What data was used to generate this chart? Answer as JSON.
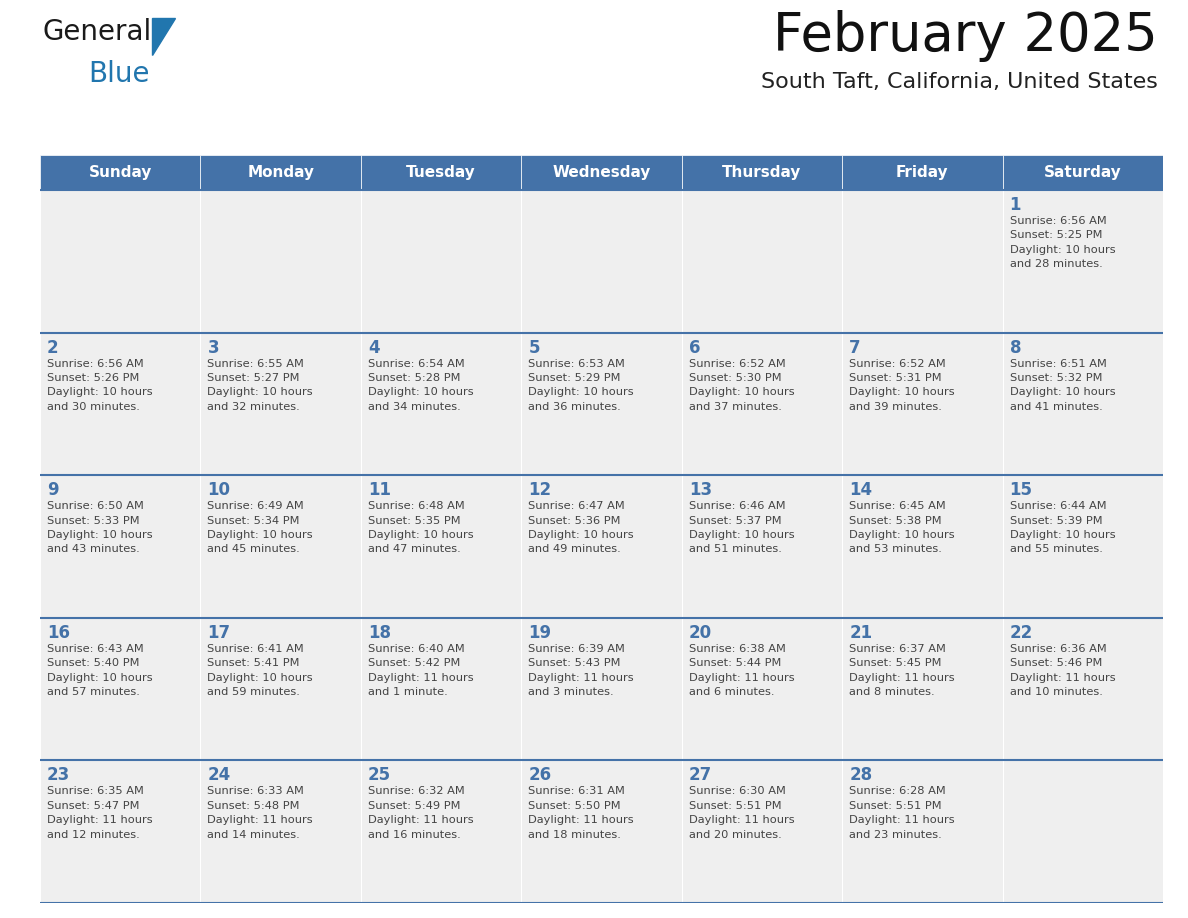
{
  "title": "February 2025",
  "subtitle": "South Taft, California, United States",
  "header_color": "#4472A8",
  "header_text_color": "#FFFFFF",
  "cell_bg_color": "#EFEFEF",
  "border_color": "#4472A8",
  "day_number_color": "#4472A8",
  "text_color": "#444444",
  "days_of_week": [
    "Sunday",
    "Monday",
    "Tuesday",
    "Wednesday",
    "Thursday",
    "Friday",
    "Saturday"
  ],
  "weeks": [
    [
      {
        "day": "",
        "info": ""
      },
      {
        "day": "",
        "info": ""
      },
      {
        "day": "",
        "info": ""
      },
      {
        "day": "",
        "info": ""
      },
      {
        "day": "",
        "info": ""
      },
      {
        "day": "",
        "info": ""
      },
      {
        "day": "1",
        "info": "Sunrise: 6:56 AM\nSunset: 5:25 PM\nDaylight: 10 hours\nand 28 minutes."
      }
    ],
    [
      {
        "day": "2",
        "info": "Sunrise: 6:56 AM\nSunset: 5:26 PM\nDaylight: 10 hours\nand 30 minutes."
      },
      {
        "day": "3",
        "info": "Sunrise: 6:55 AM\nSunset: 5:27 PM\nDaylight: 10 hours\nand 32 minutes."
      },
      {
        "day": "4",
        "info": "Sunrise: 6:54 AM\nSunset: 5:28 PM\nDaylight: 10 hours\nand 34 minutes."
      },
      {
        "day": "5",
        "info": "Sunrise: 6:53 AM\nSunset: 5:29 PM\nDaylight: 10 hours\nand 36 minutes."
      },
      {
        "day": "6",
        "info": "Sunrise: 6:52 AM\nSunset: 5:30 PM\nDaylight: 10 hours\nand 37 minutes."
      },
      {
        "day": "7",
        "info": "Sunrise: 6:52 AM\nSunset: 5:31 PM\nDaylight: 10 hours\nand 39 minutes."
      },
      {
        "day": "8",
        "info": "Sunrise: 6:51 AM\nSunset: 5:32 PM\nDaylight: 10 hours\nand 41 minutes."
      }
    ],
    [
      {
        "day": "9",
        "info": "Sunrise: 6:50 AM\nSunset: 5:33 PM\nDaylight: 10 hours\nand 43 minutes."
      },
      {
        "day": "10",
        "info": "Sunrise: 6:49 AM\nSunset: 5:34 PM\nDaylight: 10 hours\nand 45 minutes."
      },
      {
        "day": "11",
        "info": "Sunrise: 6:48 AM\nSunset: 5:35 PM\nDaylight: 10 hours\nand 47 minutes."
      },
      {
        "day": "12",
        "info": "Sunrise: 6:47 AM\nSunset: 5:36 PM\nDaylight: 10 hours\nand 49 minutes."
      },
      {
        "day": "13",
        "info": "Sunrise: 6:46 AM\nSunset: 5:37 PM\nDaylight: 10 hours\nand 51 minutes."
      },
      {
        "day": "14",
        "info": "Sunrise: 6:45 AM\nSunset: 5:38 PM\nDaylight: 10 hours\nand 53 minutes."
      },
      {
        "day": "15",
        "info": "Sunrise: 6:44 AM\nSunset: 5:39 PM\nDaylight: 10 hours\nand 55 minutes."
      }
    ],
    [
      {
        "day": "16",
        "info": "Sunrise: 6:43 AM\nSunset: 5:40 PM\nDaylight: 10 hours\nand 57 minutes."
      },
      {
        "day": "17",
        "info": "Sunrise: 6:41 AM\nSunset: 5:41 PM\nDaylight: 10 hours\nand 59 minutes."
      },
      {
        "day": "18",
        "info": "Sunrise: 6:40 AM\nSunset: 5:42 PM\nDaylight: 11 hours\nand 1 minute."
      },
      {
        "day": "19",
        "info": "Sunrise: 6:39 AM\nSunset: 5:43 PM\nDaylight: 11 hours\nand 3 minutes."
      },
      {
        "day": "20",
        "info": "Sunrise: 6:38 AM\nSunset: 5:44 PM\nDaylight: 11 hours\nand 6 minutes."
      },
      {
        "day": "21",
        "info": "Sunrise: 6:37 AM\nSunset: 5:45 PM\nDaylight: 11 hours\nand 8 minutes."
      },
      {
        "day": "22",
        "info": "Sunrise: 6:36 AM\nSunset: 5:46 PM\nDaylight: 11 hours\nand 10 minutes."
      }
    ],
    [
      {
        "day": "23",
        "info": "Sunrise: 6:35 AM\nSunset: 5:47 PM\nDaylight: 11 hours\nand 12 minutes."
      },
      {
        "day": "24",
        "info": "Sunrise: 6:33 AM\nSunset: 5:48 PM\nDaylight: 11 hours\nand 14 minutes."
      },
      {
        "day": "25",
        "info": "Sunrise: 6:32 AM\nSunset: 5:49 PM\nDaylight: 11 hours\nand 16 minutes."
      },
      {
        "day": "26",
        "info": "Sunrise: 6:31 AM\nSunset: 5:50 PM\nDaylight: 11 hours\nand 18 minutes."
      },
      {
        "day": "27",
        "info": "Sunrise: 6:30 AM\nSunset: 5:51 PM\nDaylight: 11 hours\nand 20 minutes."
      },
      {
        "day": "28",
        "info": "Sunrise: 6:28 AM\nSunset: 5:51 PM\nDaylight: 11 hours\nand 23 minutes."
      },
      {
        "day": "",
        "info": ""
      }
    ]
  ],
  "logo_general_color": "#1a1a1a",
  "logo_blue_color": "#2176AE",
  "logo_triangle_color": "#2176AE",
  "fig_width": 11.88,
  "fig_height": 9.18,
  "dpi": 100
}
